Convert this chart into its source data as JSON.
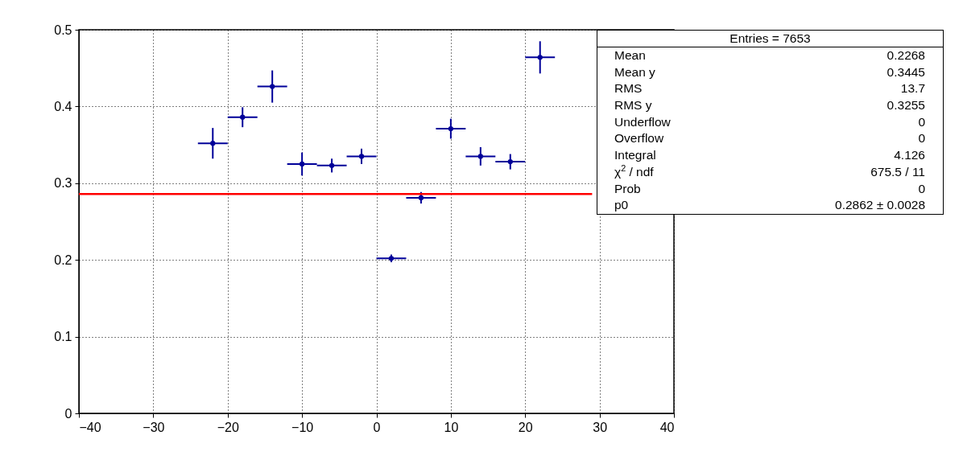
{
  "chart_data": {
    "type": "scatter",
    "x": [
      -22,
      -18,
      -14,
      -10,
      -6,
      -2,
      2,
      6,
      10,
      14,
      18,
      22
    ],
    "series": [
      {
        "color": "#000099",
        "values": [
          0.352,
          0.386,
          0.426,
          0.325,
          0.323,
          0.335,
          0.202,
          0.281,
          0.371,
          0.335,
          0.328,
          0.464
        ],
        "errors": [
          0.02,
          0.013,
          0.021,
          0.015,
          0.009,
          0.01,
          0.005,
          0.0075,
          0.013,
          0.012,
          0.01,
          0.021
        ],
        "xerrors": [
          2,
          2,
          2,
          2,
          2,
          2,
          2,
          2,
          2,
          2,
          2,
          2
        ]
      },
      {
        "type": "line",
        "color": "#ff0000",
        "x": [
          -40,
          29
        ],
        "values": [
          0.286,
          0.286
        ]
      }
    ],
    "xlim": [
      -40,
      40
    ],
    "xticks": [
      -40,
      -30,
      -20,
      -10,
      0,
      10,
      20,
      30,
      40
    ],
    "ylim": [
      0,
      0.5
    ],
    "yticks": [
      0,
      0.1,
      0.2,
      0.3,
      0.4,
      0.5
    ],
    "grid": true,
    "line_style": "solid",
    "annotations": [
      "Entries = 7653",
      "Mean",
      "0.2268",
      "Mean y",
      "0.3445",
      "RMS",
      "13.7",
      "RMS y",
      "0.3255",
      "Underflow",
      "0",
      "Overflow",
      "0",
      "Integral",
      "4.126",
      "χ$^{2}$ / ndf",
      "675.5 / 11",
      "Prob",
      "0",
      "p0",
      "0.2862 ± 0.0028"
    ]
  }
}
